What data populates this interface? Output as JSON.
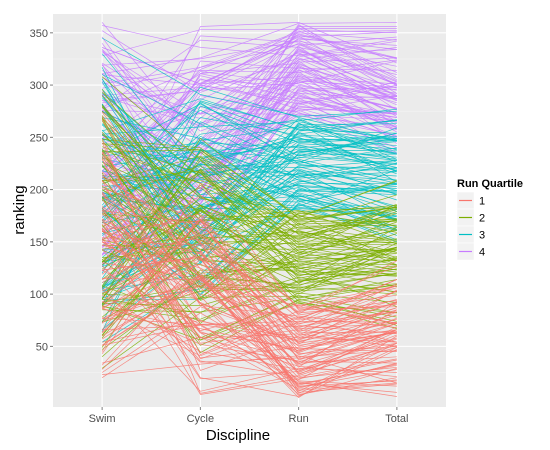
{
  "chart_data": {
    "type": "line",
    "subtype": "parallel-coordinates",
    "xlabel": "Discipline",
    "ylabel": "ranking",
    "categories": [
      "Swim",
      "Cycle",
      "Run",
      "Total"
    ],
    "ylim": [
      -8,
      368
    ],
    "yticks": [
      50,
      100,
      150,
      200,
      250,
      300,
      350
    ],
    "grid": true,
    "legend": {
      "title": "Run Quartile",
      "placement": "right",
      "entries": [
        "1",
        "2",
        "3",
        "4"
      ]
    },
    "colors": {
      "1": "#F8766D",
      "2": "#7CAE00",
      "3": "#00BFC4",
      "4": "#C77CFF",
      "panel": "#EBEBEB",
      "grid_major": "#FFFFFF",
      "grid_minor": "#F5F5F5"
    },
    "series_summary": [
      {
        "name": "1",
        "run_rank_range": [
          1,
          90
        ],
        "count": 90
      },
      {
        "name": "2",
        "run_rank_range": [
          91,
          180
        ],
        "count": 90
      },
      {
        "name": "3",
        "run_rank_range": [
          181,
          270
        ],
        "count": 90
      },
      {
        "name": "4",
        "run_rank_range": [
          271,
          360
        ],
        "count": 90
      }
    ]
  }
}
